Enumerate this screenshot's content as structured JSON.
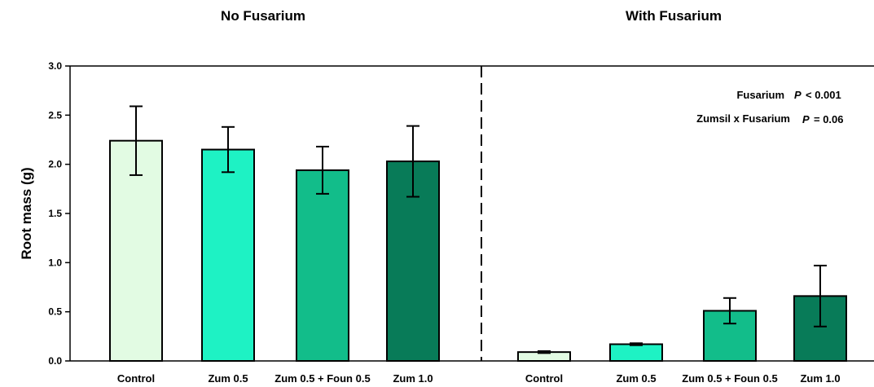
{
  "chart_data": {
    "type": "bar",
    "ylabel": "Root mass (g)",
    "ylim": [
      0,
      3.0
    ],
    "yticks": [
      0.0,
      0.5,
      1.0,
      1.5,
      2.0,
      2.5,
      3.0
    ],
    "ytick_labels": [
      "0.0",
      "0.5",
      "1.0",
      "1.5",
      "2.0",
      "2.5",
      "3.0"
    ],
    "grid": false,
    "categories": [
      "Control",
      "Zum 0.5",
      "Zum 0.5 + Foun 0.5",
      "Zum 1.0"
    ],
    "bar_colors": [
      "#e2fbe3",
      "#1ef2c4",
      "#12bd8a",
      "#087b58"
    ],
    "panels": [
      {
        "title": "No Fusarium",
        "values": [
          2.24,
          2.15,
          1.94,
          2.03
        ],
        "error_plus_minus": [
          0.35,
          0.23,
          0.24,
          0.36
        ]
      },
      {
        "title": "With Fusarium",
        "values": [
          0.09,
          0.17,
          0.51,
          0.66
        ],
        "error_plus_minus": [
          0.01,
          0.01,
          0.13,
          0.31
        ]
      }
    ],
    "annotations": [
      {
        "label": "Fusarium",
        "p_symbol": "P",
        "p_value": "< 0.001"
      },
      {
        "label": "Zumsil x Fusarium",
        "p_symbol": "P",
        "p_value": "= 0.06"
      }
    ]
  }
}
